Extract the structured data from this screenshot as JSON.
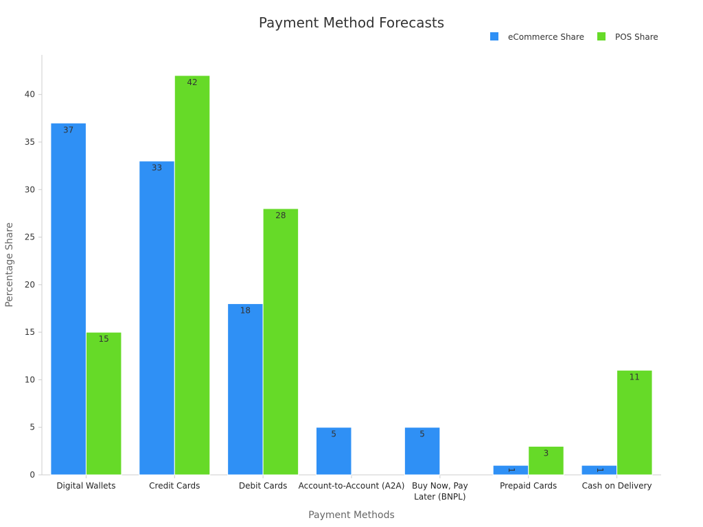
{
  "chart_data": {
    "type": "bar",
    "title": "Payment Method Forecasts",
    "xlabel": "Payment Methods",
    "ylabel": "Percentage Share",
    "ylim": [
      0,
      44
    ],
    "yticks": [
      0,
      5,
      10,
      15,
      20,
      25,
      30,
      35,
      40
    ],
    "grid": false,
    "legend_position": "top-right",
    "categories": [
      [
        "Digital Wallets"
      ],
      [
        "Credit Cards"
      ],
      [
        "Debit Cards"
      ],
      [
        "Account-to-Account (A2A)"
      ],
      [
        "Buy Now, Pay",
        "Later (BNPL)"
      ],
      [
        "Prepaid Cards"
      ],
      [
        "Cash on Delivery"
      ]
    ],
    "series": [
      {
        "name": "eCommerce Share",
        "color": "#2f90f5",
        "values": [
          37,
          33,
          18,
          5,
          5,
          1,
          1
        ]
      },
      {
        "name": "POS Share",
        "color": "#66da28",
        "values": [
          15,
          42,
          28,
          null,
          null,
          3,
          11
        ]
      }
    ]
  }
}
